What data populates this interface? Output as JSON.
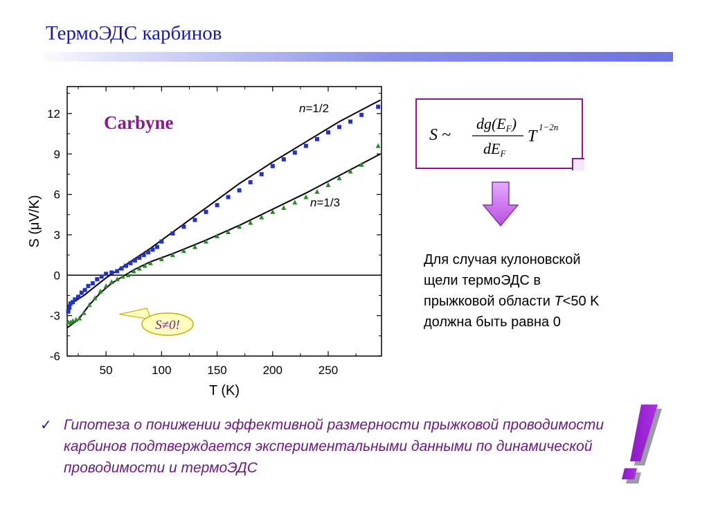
{
  "slide": {
    "title": "ТермоЭДС карбинов",
    "hypothesis_text": "Гипотеза о понижении эффективной размерности прыжковой проводимости карбинов подтверждается экспериментальными данными по динамической проводимости и термоЭДС",
    "check_icon": "checkmark-icon",
    "exclaim_icon": "exclamation-icon",
    "colors": {
      "title": "#1a1a9c",
      "accent": "#8a1a8a",
      "hypothesis": "#6a1a80",
      "arrow": "#cc66ee"
    }
  },
  "formula": {
    "lhs": "S ~",
    "numerator": "dg(E_F)",
    "denominator": "dE_F",
    "factor": "T",
    "exponent": "1−2n"
  },
  "explanation": {
    "line1": "Для случая кулоновской",
    "line2": "щели термоЭДС в",
    "line3_pre": "прыжковой области ",
    "line3_var": "T",
    "line3_post": "<50 K",
    "line4": "должна быть равна 0"
  },
  "chart_data": {
    "type": "scatter",
    "title": "Carbyne",
    "xlabel": "T (K)",
    "ylabel": "S (μV/K)",
    "xlim": [
      15,
      298
    ],
    "ylim": [
      -6,
      14
    ],
    "xticks": [
      50,
      100,
      150,
      200,
      250
    ],
    "yticks": [
      -6,
      -3,
      0,
      3,
      6,
      9,
      12
    ],
    "zero_line": true,
    "grid": false,
    "callout": "S≠0!",
    "series": [
      {
        "name": "n=1/2",
        "marker": "square",
        "color": "#2233cc",
        "x": [
          16,
          17,
          18,
          20,
          22,
          25,
          28,
          31,
          34,
          38,
          42,
          46,
          50,
          55,
          60,
          64,
          68,
          72,
          76,
          80,
          84,
          88,
          92,
          96,
          100,
          110,
          120,
          130,
          140,
          150,
          160,
          170,
          180,
          190,
          200,
          210,
          220,
          230,
          240,
          250,
          260,
          270,
          280,
          295
        ],
        "y": [
          -2.7,
          -2.4,
          -2.1,
          -2.0,
          -1.8,
          -1.6,
          -1.3,
          -1.1,
          -0.8,
          -0.6,
          -0.3,
          -0.1,
          0.1,
          0.2,
          0.3,
          0.5,
          0.7,
          0.9,
          1.1,
          1.3,
          1.5,
          1.7,
          1.9,
          2.1,
          2.5,
          3.1,
          3.6,
          4.1,
          4.7,
          5.2,
          5.8,
          6.3,
          6.9,
          7.5,
          8.1,
          8.6,
          9.1,
          9.6,
          10.1,
          10.6,
          11.0,
          11.4,
          11.9,
          12.5
        ]
      },
      {
        "name": "n=1/3",
        "marker": "triangle",
        "color": "#2a8a2a",
        "x": [
          16,
          18,
          20,
          23,
          26,
          30,
          35,
          40,
          45,
          50,
          55,
          60,
          65,
          70,
          75,
          80,
          85,
          90,
          100,
          110,
          120,
          130,
          140,
          150,
          160,
          170,
          180,
          190,
          200,
          210,
          220,
          230,
          240,
          250,
          260,
          270,
          280,
          295
        ],
        "y": [
          -3.5,
          -3.5,
          -3.4,
          -3.3,
          -3.2,
          -2.8,
          -2.2,
          -1.7,
          -1.2,
          -0.8,
          -0.5,
          -0.3,
          -0.1,
          0.0,
          0.3,
          0.5,
          0.7,
          0.9,
          1.2,
          1.5,
          1.8,
          2.1,
          2.5,
          2.9,
          3.2,
          3.6,
          3.9,
          4.3,
          4.7,
          5.0,
          5.4,
          5.8,
          6.2,
          6.7,
          7.2,
          7.7,
          8.2,
          9.6
        ]
      }
    ],
    "fits": [
      {
        "series": "n=1/2",
        "x": [
          15,
          30,
          50,
          70,
          90,
          110,
          130,
          150,
          170,
          200,
          230,
          260,
          290,
          297
        ],
        "y": [
          -2.3,
          -1.5,
          -0.2,
          0.9,
          2.0,
          3.2,
          4.4,
          5.6,
          6.8,
          8.4,
          9.9,
          11.4,
          12.7,
          13.0
        ]
      },
      {
        "series": "n=1/3",
        "x": [
          15,
          25,
          35,
          45,
          55,
          65,
          75,
          90,
          110,
          140,
          170,
          200,
          230,
          260,
          297
        ],
        "y": [
          -3.9,
          -3.3,
          -2.2,
          -1.3,
          -0.6,
          -0.1,
          0.4,
          1.0,
          1.6,
          2.6,
          3.7,
          4.9,
          6.1,
          7.4,
          9.0
        ]
      }
    ]
  }
}
